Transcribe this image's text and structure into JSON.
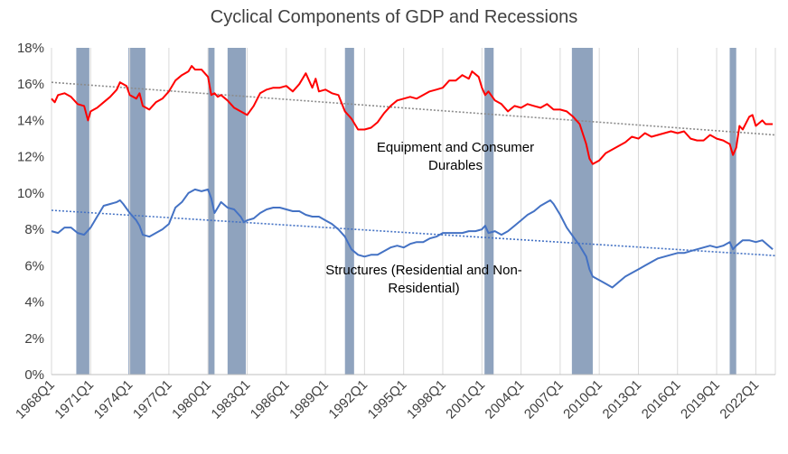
{
  "chart_data": {
    "type": "line",
    "title": "Cyclical Components of GDP and Recessions",
    "xlabel": "",
    "ylabel": "",
    "ylim": [
      0,
      18
    ],
    "y_tick_labels": [
      "0%",
      "2%",
      "4%",
      "6%",
      "8%",
      "10%",
      "12%",
      "14%",
      "16%",
      "18%"
    ],
    "x_tick_labels": [
      "1968Q1",
      "1971Q1",
      "1974Q1",
      "1977Q1",
      "1980Q1",
      "1983Q1",
      "1986Q1",
      "1989Q1",
      "1992Q1",
      "1995Q1",
      "1998Q1",
      "2001Q1",
      "2004Q1",
      "2007Q1",
      "2010Q1",
      "2013Q1",
      "2016Q1",
      "2019Q1",
      "2022Q1"
    ],
    "xlim": [
      1968.0,
      2023.5
    ],
    "grid": "vertical",
    "annotations": [
      {
        "lines": [
          "Equipment and Consumer",
          "Durables"
        ],
        "color": "#000000"
      },
      {
        "lines": [
          "Structures (Residential and Non-",
          "Residential)"
        ],
        "color": "#000000"
      }
    ],
    "recessions": [
      [
        1969.9,
        1970.9
      ],
      [
        1973.9,
        1975.2
      ],
      [
        1980.0,
        1980.5
      ],
      [
        1981.5,
        1982.9
      ],
      [
        1990.5,
        1991.2
      ],
      [
        2001.2,
        2001.9
      ],
      [
        2007.9,
        2009.5
      ],
      [
        2020.0,
        2020.5
      ]
    ],
    "recession_color": "#8fa3be",
    "series": [
      {
        "color": "#ff0000",
        "trend": {
          "from": [
            1968.0,
            16.1
          ],
          "to": [
            2023.5,
            13.2
          ],
          "color": "#8c8c8c"
        },
        "points": [
          [
            1968.0,
            15.2
          ],
          [
            1968.25,
            15.0
          ],
          [
            1968.5,
            15.4
          ],
          [
            1969.0,
            15.5
          ],
          [
            1969.5,
            15.3
          ],
          [
            1970.0,
            14.9
          ],
          [
            1970.5,
            14.8
          ],
          [
            1970.8,
            14.0
          ],
          [
            1971.0,
            14.5
          ],
          [
            1971.5,
            14.7
          ],
          [
            1972.0,
            15.0
          ],
          [
            1972.5,
            15.3
          ],
          [
            1973.0,
            15.7
          ],
          [
            1973.25,
            16.1
          ],
          [
            1973.75,
            15.9
          ],
          [
            1974.0,
            15.4
          ],
          [
            1974.5,
            15.2
          ],
          [
            1974.75,
            15.5
          ],
          [
            1975.0,
            14.8
          ],
          [
            1975.5,
            14.6
          ],
          [
            1976.0,
            15.0
          ],
          [
            1976.5,
            15.2
          ],
          [
            1977.0,
            15.6
          ],
          [
            1977.5,
            16.2
          ],
          [
            1978.0,
            16.5
          ],
          [
            1978.5,
            16.7
          ],
          [
            1978.75,
            17.0
          ],
          [
            1979.0,
            16.8
          ],
          [
            1979.5,
            16.8
          ],
          [
            1980.0,
            16.4
          ],
          [
            1980.25,
            15.4
          ],
          [
            1980.5,
            15.5
          ],
          [
            1980.75,
            15.3
          ],
          [
            1981.0,
            15.4
          ],
          [
            1981.5,
            15.1
          ],
          [
            1982.0,
            14.7
          ],
          [
            1982.5,
            14.5
          ],
          [
            1983.0,
            14.3
          ],
          [
            1983.5,
            14.8
          ],
          [
            1984.0,
            15.5
          ],
          [
            1984.5,
            15.7
          ],
          [
            1985.0,
            15.8
          ],
          [
            1985.5,
            15.8
          ],
          [
            1986.0,
            15.9
          ],
          [
            1986.5,
            15.6
          ],
          [
            1987.0,
            16.0
          ],
          [
            1987.5,
            16.6
          ],
          [
            1988.0,
            15.8
          ],
          [
            1988.25,
            16.3
          ],
          [
            1988.5,
            15.6
          ],
          [
            1989.0,
            15.7
          ],
          [
            1989.5,
            15.5
          ],
          [
            1990.0,
            15.4
          ],
          [
            1990.5,
            14.5
          ],
          [
            1991.0,
            14.1
          ],
          [
            1991.5,
            13.5
          ],
          [
            1992.0,
            13.5
          ],
          [
            1992.5,
            13.6
          ],
          [
            1993.0,
            13.9
          ],
          [
            1993.5,
            14.4
          ],
          [
            1994.0,
            14.8
          ],
          [
            1994.5,
            15.1
          ],
          [
            1995.0,
            15.2
          ],
          [
            1995.5,
            15.3
          ],
          [
            1996.0,
            15.2
          ],
          [
            1996.5,
            15.4
          ],
          [
            1997.0,
            15.6
          ],
          [
            1997.5,
            15.7
          ],
          [
            1998.0,
            15.8
          ],
          [
            1998.5,
            16.2
          ],
          [
            1999.0,
            16.2
          ],
          [
            1999.5,
            16.5
          ],
          [
            2000.0,
            16.3
          ],
          [
            2000.25,
            16.7
          ],
          [
            2000.75,
            16.4
          ],
          [
            2001.0,
            15.8
          ],
          [
            2001.25,
            15.4
          ],
          [
            2001.5,
            15.6
          ],
          [
            2002.0,
            15.1
          ],
          [
            2002.5,
            14.9
          ],
          [
            2003.0,
            14.5
          ],
          [
            2003.5,
            14.8
          ],
          [
            2004.0,
            14.7
          ],
          [
            2004.5,
            14.9
          ],
          [
            2005.0,
            14.8
          ],
          [
            2005.5,
            14.7
          ],
          [
            2006.0,
            14.9
          ],
          [
            2006.5,
            14.6
          ],
          [
            2007.0,
            14.6
          ],
          [
            2007.5,
            14.5
          ],
          [
            2008.0,
            14.2
          ],
          [
            2008.5,
            13.8
          ],
          [
            2009.0,
            12.7
          ],
          [
            2009.25,
            11.9
          ],
          [
            2009.5,
            11.6
          ],
          [
            2010.0,
            11.8
          ],
          [
            2010.5,
            12.2
          ],
          [
            2011.0,
            12.4
          ],
          [
            2011.5,
            12.6
          ],
          [
            2012.0,
            12.8
          ],
          [
            2012.5,
            13.1
          ],
          [
            2013.0,
            13.0
          ],
          [
            2013.5,
            13.3
          ],
          [
            2014.0,
            13.1
          ],
          [
            2014.5,
            13.2
          ],
          [
            2015.0,
            13.3
          ],
          [
            2015.5,
            13.4
          ],
          [
            2016.0,
            13.3
          ],
          [
            2016.5,
            13.4
          ],
          [
            2017.0,
            13.0
          ],
          [
            2017.5,
            12.9
          ],
          [
            2018.0,
            12.9
          ],
          [
            2018.5,
            13.2
          ],
          [
            2019.0,
            13.0
          ],
          [
            2019.5,
            12.9
          ],
          [
            2020.0,
            12.7
          ],
          [
            2020.25,
            12.1
          ],
          [
            2020.5,
            12.5
          ],
          [
            2020.75,
            13.7
          ],
          [
            2021.0,
            13.5
          ],
          [
            2021.5,
            14.2
          ],
          [
            2021.75,
            14.3
          ],
          [
            2022.0,
            13.7
          ],
          [
            2022.5,
            14.0
          ],
          [
            2022.75,
            13.8
          ],
          [
            2023.3,
            13.8
          ]
        ]
      },
      {
        "color": "#4472c4",
        "trend": {
          "from": [
            1968.0,
            9.05
          ],
          "to": [
            2023.5,
            6.55
          ],
          "color": "#4472c4"
        },
        "points": [
          [
            1968.0,
            7.9
          ],
          [
            1968.5,
            7.8
          ],
          [
            1969.0,
            8.1
          ],
          [
            1969.5,
            8.1
          ],
          [
            1970.0,
            7.8
          ],
          [
            1970.5,
            7.7
          ],
          [
            1971.0,
            8.1
          ],
          [
            1971.5,
            8.7
          ],
          [
            1972.0,
            9.3
          ],
          [
            1972.5,
            9.4
          ],
          [
            1973.0,
            9.5
          ],
          [
            1973.25,
            9.6
          ],
          [
            1973.5,
            9.4
          ],
          [
            1974.0,
            8.9
          ],
          [
            1974.5,
            8.5
          ],
          [
            1974.75,
            8.2
          ],
          [
            1975.0,
            7.7
          ],
          [
            1975.5,
            7.6
          ],
          [
            1976.0,
            7.8
          ],
          [
            1976.5,
            8.0
          ],
          [
            1977.0,
            8.3
          ],
          [
            1977.5,
            9.2
          ],
          [
            1978.0,
            9.5
          ],
          [
            1978.5,
            10.0
          ],
          [
            1979.0,
            10.2
          ],
          [
            1979.5,
            10.1
          ],
          [
            1980.0,
            10.2
          ],
          [
            1980.25,
            9.7
          ],
          [
            1980.5,
            8.9
          ],
          [
            1980.75,
            9.2
          ],
          [
            1981.0,
            9.5
          ],
          [
            1981.5,
            9.2
          ],
          [
            1982.0,
            9.1
          ],
          [
            1982.5,
            8.7
          ],
          [
            1982.75,
            8.4
          ],
          [
            1983.0,
            8.5
          ],
          [
            1983.5,
            8.6
          ],
          [
            1984.0,
            8.9
          ],
          [
            1984.5,
            9.1
          ],
          [
            1985.0,
            9.2
          ],
          [
            1985.5,
            9.2
          ],
          [
            1986.0,
            9.1
          ],
          [
            1986.5,
            9.0
          ],
          [
            1987.0,
            9.0
          ],
          [
            1987.5,
            8.8
          ],
          [
            1988.0,
            8.7
          ],
          [
            1988.5,
            8.7
          ],
          [
            1989.0,
            8.5
          ],
          [
            1989.5,
            8.3
          ],
          [
            1990.0,
            8.0
          ],
          [
            1990.5,
            7.6
          ],
          [
            1991.0,
            6.9
          ],
          [
            1991.5,
            6.6
          ],
          [
            1992.0,
            6.5
          ],
          [
            1992.5,
            6.6
          ],
          [
            1993.0,
            6.6
          ],
          [
            1993.5,
            6.8
          ],
          [
            1994.0,
            7.0
          ],
          [
            1994.5,
            7.1
          ],
          [
            1995.0,
            7.0
          ],
          [
            1995.5,
            7.2
          ],
          [
            1996.0,
            7.3
          ],
          [
            1996.5,
            7.3
          ],
          [
            1997.0,
            7.5
          ],
          [
            1997.5,
            7.6
          ],
          [
            1998.0,
            7.8
          ],
          [
            1998.5,
            7.8
          ],
          [
            1999.0,
            7.8
          ],
          [
            1999.5,
            7.8
          ],
          [
            2000.0,
            7.9
          ],
          [
            2000.5,
            7.9
          ],
          [
            2001.0,
            8.0
          ],
          [
            2001.25,
            8.2
          ],
          [
            2001.5,
            7.8
          ],
          [
            2002.0,
            7.9
          ],
          [
            2002.5,
            7.7
          ],
          [
            2003.0,
            7.9
          ],
          [
            2003.5,
            8.2
          ],
          [
            2004.0,
            8.5
          ],
          [
            2004.5,
            8.8
          ],
          [
            2005.0,
            9.0
          ],
          [
            2005.5,
            9.3
          ],
          [
            2006.0,
            9.5
          ],
          [
            2006.25,
            9.6
          ],
          [
            2006.5,
            9.4
          ],
          [
            2007.0,
            8.8
          ],
          [
            2007.5,
            8.1
          ],
          [
            2008.0,
            7.6
          ],
          [
            2008.5,
            7.1
          ],
          [
            2009.0,
            6.5
          ],
          [
            2009.25,
            5.8
          ],
          [
            2009.5,
            5.4
          ],
          [
            2010.0,
            5.2
          ],
          [
            2010.5,
            5.0
          ],
          [
            2011.0,
            4.8
          ],
          [
            2011.5,
            5.1
          ],
          [
            2012.0,
            5.4
          ],
          [
            2012.5,
            5.6
          ],
          [
            2013.0,
            5.8
          ],
          [
            2013.5,
            6.0
          ],
          [
            2014.0,
            6.2
          ],
          [
            2014.5,
            6.4
          ],
          [
            2015.0,
            6.5
          ],
          [
            2015.5,
            6.6
          ],
          [
            2016.0,
            6.7
          ],
          [
            2016.5,
            6.7
          ],
          [
            2017.0,
            6.8
          ],
          [
            2017.5,
            6.9
          ],
          [
            2018.0,
            7.0
          ],
          [
            2018.5,
            7.1
          ],
          [
            2019.0,
            7.0
          ],
          [
            2019.5,
            7.1
          ],
          [
            2020.0,
            7.3
          ],
          [
            2020.25,
            6.9
          ],
          [
            2020.5,
            7.1
          ],
          [
            2021.0,
            7.4
          ],
          [
            2021.5,
            7.4
          ],
          [
            2022.0,
            7.3
          ],
          [
            2022.5,
            7.4
          ],
          [
            2023.3,
            6.9
          ]
        ]
      }
    ]
  }
}
